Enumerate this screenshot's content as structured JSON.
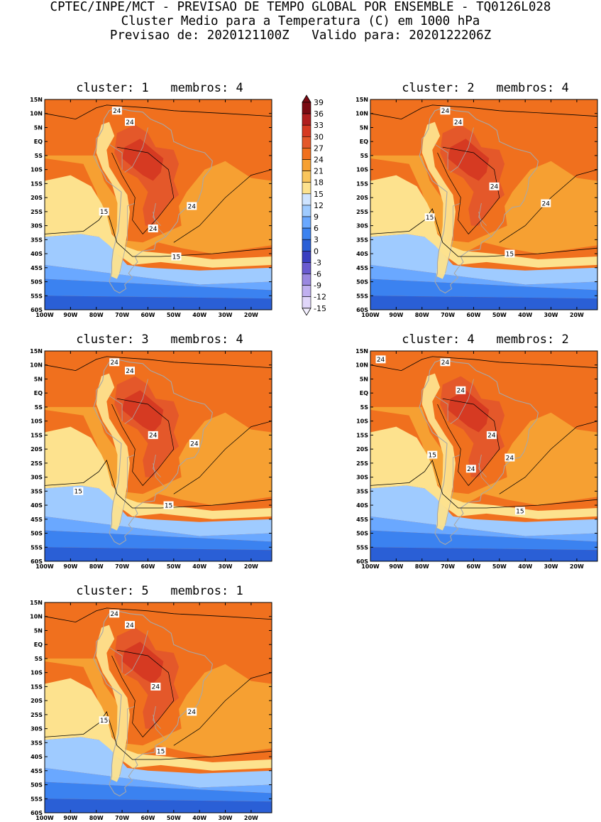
{
  "header": {
    "line1": "CPTEC/INPE/MCT - PREVISAO DE TEMPO GLOBAL POR ENSEMBLE - TQ0126L028",
    "line2": "Cluster Medio para a Temperatura (C) em 1000 hPa",
    "line3": "Previsao de: 2020121100Z   Valido para: 2020122206Z"
  },
  "axes": {
    "lon_labels": [
      "100W",
      "90W",
      "80W",
      "70W",
      "60W",
      "50W",
      "40W",
      "30W",
      "20W"
    ],
    "lat_labels": [
      "15N",
      "10N",
      "5N",
      "EQ",
      "5S",
      "10S",
      "15S",
      "20S",
      "25S",
      "30S",
      "35S",
      "40S",
      "45S",
      "50S",
      "55S",
      "60S"
    ]
  },
  "colorbar": {
    "labels": [
      "39",
      "36",
      "33",
      "30",
      "27",
      "24",
      "21",
      "18",
      "15",
      "12",
      "9",
      "6",
      "3",
      "0",
      "-3",
      "-6",
      "-9",
      "-12",
      "-15"
    ],
    "colors": [
      "#7a0a12",
      "#b01e1e",
      "#d63a22",
      "#e4582a",
      "#f0701e",
      "#f6a032",
      "#f9c55c",
      "#fde28e",
      "#cfe4ff",
      "#9fcbff",
      "#6aa8ff",
      "#3b82f0",
      "#2a5fd6",
      "#3a3fc0",
      "#6a5bd0",
      "#9a88e0",
      "#c0b0f0",
      "#e0d6fa"
    ]
  },
  "panels": [
    {
      "title": "cluster: 1   membros: 4",
      "labels": [
        {
          "t": "24",
          "lon": -72,
          "lat": 11
        },
        {
          "t": "24",
          "lon": -67,
          "lat": 7
        },
        {
          "t": "15",
          "lon": -77,
          "lat": -25
        },
        {
          "t": "24",
          "lon": -43,
          "lat": -23
        },
        {
          "t": "24",
          "lon": -58,
          "lat": -31
        },
        {
          "t": "15",
          "lon": -49,
          "lat": -41
        }
      ]
    },
    {
      "title": "cluster: 2   membros: 4",
      "labels": [
        {
          "t": "24",
          "lon": -71,
          "lat": 11
        },
        {
          "t": "24",
          "lon": -66,
          "lat": 7
        },
        {
          "t": "15",
          "lon": -77,
          "lat": -27
        },
        {
          "t": "24",
          "lon": -52,
          "lat": -16
        },
        {
          "t": "24",
          "lon": -32,
          "lat": -22
        },
        {
          "t": "15",
          "lon": -46,
          "lat": -40
        }
      ]
    },
    {
      "title": "cluster: 3   membros: 4",
      "labels": [
        {
          "t": "24",
          "lon": -73,
          "lat": 11
        },
        {
          "t": "24",
          "lon": -67,
          "lat": 8
        },
        {
          "t": "24",
          "lon": -58,
          "lat": -15
        },
        {
          "t": "24",
          "lon": -42,
          "lat": -18
        },
        {
          "t": "15",
          "lon": -87,
          "lat": -35
        },
        {
          "t": "15",
          "lon": -52,
          "lat": -40
        }
      ]
    },
    {
      "title": "cluster: 4   membros: 2",
      "labels": [
        {
          "t": "24",
          "lon": -96,
          "lat": 12
        },
        {
          "t": "24",
          "lon": -71,
          "lat": 11
        },
        {
          "t": "24",
          "lon": -65,
          "lat": 1
        },
        {
          "t": "24",
          "lon": -53,
          "lat": -15
        },
        {
          "t": "24",
          "lon": -61,
          "lat": -27
        },
        {
          "t": "24",
          "lon": -46,
          "lat": -23
        },
        {
          "t": "15",
          "lon": -76,
          "lat": -22
        },
        {
          "t": "15",
          "lon": -42,
          "lat": -42
        }
      ]
    },
    {
      "title": "cluster: 5   membros: 1",
      "labels": [
        {
          "t": "24",
          "lon": -73,
          "lat": 11
        },
        {
          "t": "24",
          "lon": -67,
          "lat": 7
        },
        {
          "t": "24",
          "lon": -57,
          "lat": -15
        },
        {
          "t": "24",
          "lon": -43,
          "lat": -24
        },
        {
          "t": "15",
          "lon": -77,
          "lat": -27
        },
        {
          "t": "15",
          "lon": -55,
          "lat": -38
        }
      ]
    }
  ]
}
